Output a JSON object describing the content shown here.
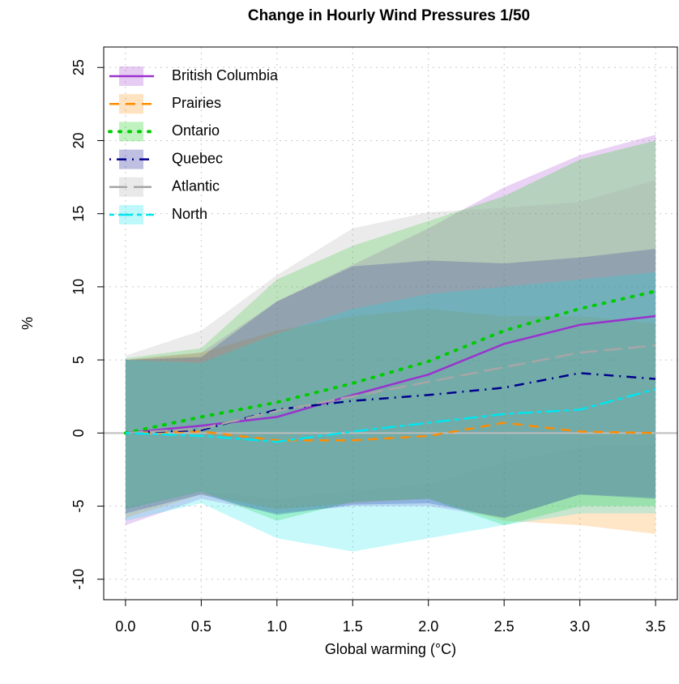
{
  "chart_data": {
    "type": "line",
    "title": "Change in Hourly Wind Pressures 1/50",
    "xlabel": "Global warming (°C)",
    "ylabel": "%",
    "x": [
      0,
      0.5,
      1,
      1.5,
      2,
      2.5,
      3,
      3.5
    ],
    "xlim": [
      -0.144,
      3.644
    ],
    "ylim": [
      -11.4,
      26.4
    ],
    "xticks": [
      {
        "value": 0,
        "label": "0.0"
      },
      {
        "value": 0.5,
        "label": "0.5"
      },
      {
        "value": 1,
        "label": "1.0"
      },
      {
        "value": 1.5,
        "label": "1.5"
      },
      {
        "value": 2,
        "label": "2.0"
      },
      {
        "value": 2.5,
        "label": "2.5"
      },
      {
        "value": 3,
        "label": "3.0"
      },
      {
        "value": 3.5,
        "label": "3.5"
      }
    ],
    "yticks": [
      -10,
      -5,
      0,
      5,
      10,
      15,
      20,
      25
    ],
    "grid": true,
    "hline": 0,
    "legend": "top-left",
    "series": [
      {
        "name": "British Columbia",
        "color": "#9a32cd",
        "dash": "solid",
        "values": [
          0,
          0.5,
          1.1,
          2.6,
          4.0,
          6.1,
          7.4,
          8.0
        ],
        "upper": [
          5,
          5.5,
          9,
          11.5,
          14,
          16.8,
          19,
          20.4
        ],
        "lower": [
          -6.3,
          -4.5,
          -5.5,
          -5,
          -5,
          -5.8,
          -4.2,
          -4.4
        ]
      },
      {
        "name": "Prairies",
        "color": "#ff8c00",
        "dash": "dashed",
        "values": [
          0,
          0.1,
          -0.5,
          -0.5,
          -0.2,
          0.7,
          0.1,
          0
        ],
        "upper": [
          5,
          5.5,
          7,
          8,
          8.5,
          8,
          8,
          7.5
        ],
        "lower": [
          -5.8,
          -4.2,
          -5.2,
          -4.8,
          -4.5,
          -6,
          -6.3,
          -6.9
        ]
      },
      {
        "name": "Ontario",
        "color": "#00cd00",
        "dash": "dotted",
        "values": [
          0,
          1.1,
          2.1,
          3.4,
          4.9,
          7,
          8.5,
          9.7
        ],
        "upper": [
          5.1,
          5.8,
          10.5,
          12.8,
          14.5,
          16.2,
          18.7,
          20
        ],
        "lower": [
          -5.2,
          -4,
          -6,
          -4.7,
          -4.5,
          -6.3,
          -5,
          -5
        ]
      },
      {
        "name": "Quebec",
        "color": "#00008b",
        "dash": "dotdash",
        "values": [
          0,
          0.2,
          1.6,
          2.2,
          2.6,
          3.1,
          4.1,
          3.7
        ],
        "upper": [
          5,
          5.2,
          9,
          11.4,
          11.8,
          11.6,
          12,
          12.6
        ],
        "lower": [
          -5.5,
          -4.2,
          -5.6,
          -4.9,
          -4.8,
          -5.8,
          -4.2,
          -4.5
        ]
      },
      {
        "name": "Atlantic",
        "color": "#a6a6a6",
        "dash": "longdash",
        "values": [
          0,
          0.3,
          1.5,
          2.5,
          3.5,
          4.5,
          5.5,
          6
        ],
        "upper": [
          5.3,
          7,
          10.8,
          14,
          15.1,
          15.4,
          15.8,
          17.3
        ],
        "lower": [
          -5,
          -4,
          -4.5,
          -4,
          -3.5,
          -2,
          -1,
          -0.8
        ]
      },
      {
        "name": "North",
        "color": "#00e5ee",
        "dash": "twodash",
        "values": [
          0,
          -0.2,
          -0.6,
          0.1,
          0.7,
          1.3,
          1.6,
          3.0
        ],
        "upper": [
          5,
          4.8,
          6.8,
          8.5,
          9.5,
          10,
          10.5,
          11
        ],
        "lower": [
          -6,
          -4.8,
          -7.2,
          -8.1,
          -7.2,
          -6.3,
          -5.5,
          -5.5
        ]
      }
    ]
  }
}
